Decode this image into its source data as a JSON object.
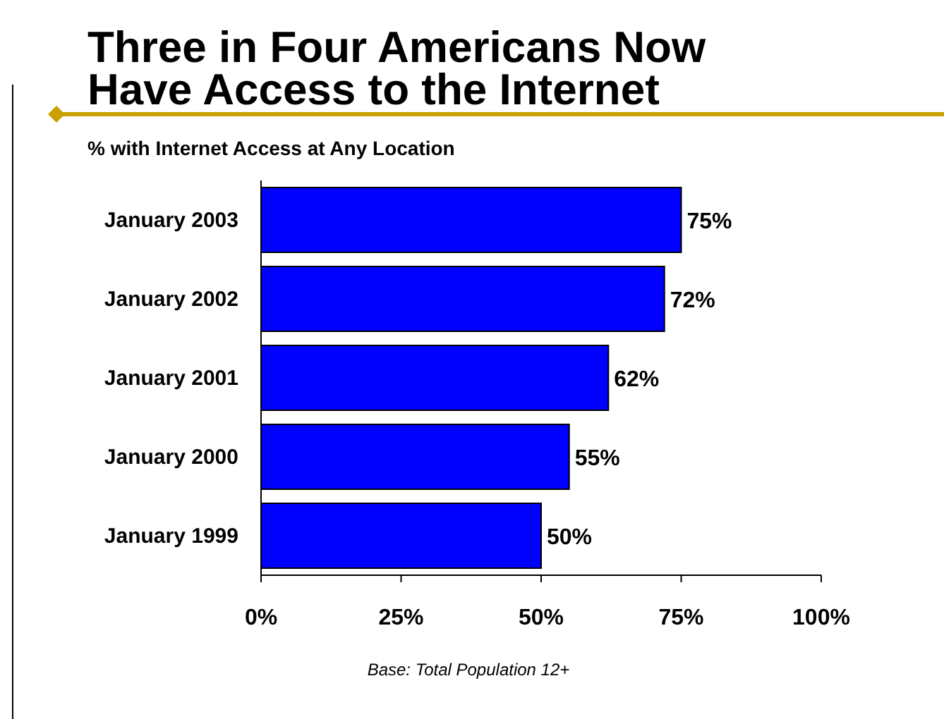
{
  "chart_data": {
    "type": "bar",
    "orientation": "horizontal",
    "title": "Three in Four Americans Now\nHave Access to the Internet",
    "subtitle": "% with Internet Access at Any Location",
    "categories": [
      "January 2003",
      "January 2002",
      "January 2001",
      "January 2000",
      "January 1999"
    ],
    "values": [
      75,
      72,
      62,
      55,
      50
    ],
    "color": "#0000ff",
    "value_labels": [
      "75%",
      "72%",
      "62%",
      "55%",
      "50%"
    ],
    "xlim": [
      0,
      100
    ],
    "xticks": [
      {
        "value": 0,
        "label": "0%"
      },
      {
        "value": 25,
        "label": "25%"
      },
      {
        "value": 50,
        "label": "50%"
      },
      {
        "value": 75,
        "label": "75%"
      },
      {
        "value": 100,
        "label": "100%"
      }
    ],
    "annotations": [
      "Base: Total Population 12+"
    ],
    "grid": false
  }
}
